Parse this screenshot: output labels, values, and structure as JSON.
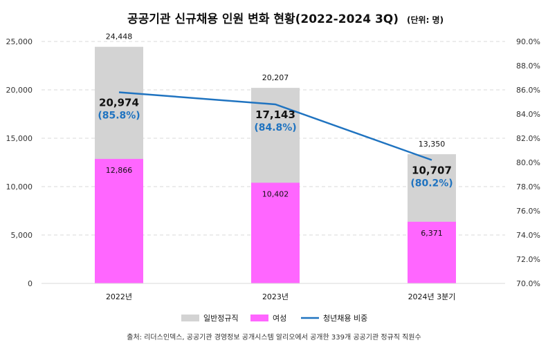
{
  "chart_data": {
    "type": "bar",
    "title": "공공기관 신규채용 인원 변화 현황(2022-2024 3Q)",
    "unit": "(단위: 명)",
    "categories": [
      "2022년",
      "2023년",
      "2024년 3분기"
    ],
    "series": [
      {
        "name": "일반정규직",
        "type": "bar",
        "values": [
          24448,
          20207,
          13350
        ],
        "color": "#d3d3d3"
      },
      {
        "name": "여성",
        "type": "bar",
        "values": [
          12866,
          10402,
          6371
        ],
        "color": "#ff66ff"
      },
      {
        "name": "청년채용 비중",
        "type": "line",
        "axis": "right",
        "values": [
          85.8,
          84.8,
          80.2
        ],
        "color": "#1f73c0"
      }
    ],
    "total_labels": [
      "24,448",
      "20,207",
      "13,350"
    ],
    "female_labels": [
      "12,866",
      "10,402",
      "6,371"
    ],
    "youth_counts": [
      "20,974",
      "17,143",
      "10,707"
    ],
    "youth_ratio_labels": [
      "(85.8%)",
      "(84.8%)",
      "(80.2%)"
    ],
    "ylim_left": [
      0,
      25000
    ],
    "ylim_right": [
      70,
      90
    ],
    "yticks_left": [
      "0",
      "5,000",
      "10,000",
      "15,000",
      "20,000",
      "25,000"
    ],
    "yticks_right": [
      "70.0%",
      "72.0%",
      "74.0%",
      "76.0%",
      "78.0%",
      "80.0%",
      "82.0%",
      "84.0%",
      "86.0%",
      "88.0%",
      "90.0%"
    ],
    "grid": true,
    "legend_position": "bottom",
    "source": "출처: 리더스인덱스, 공공기관 경영정보 공개시스템 알리오에서 공개한 339개 공공기관 정규직 직원수"
  }
}
